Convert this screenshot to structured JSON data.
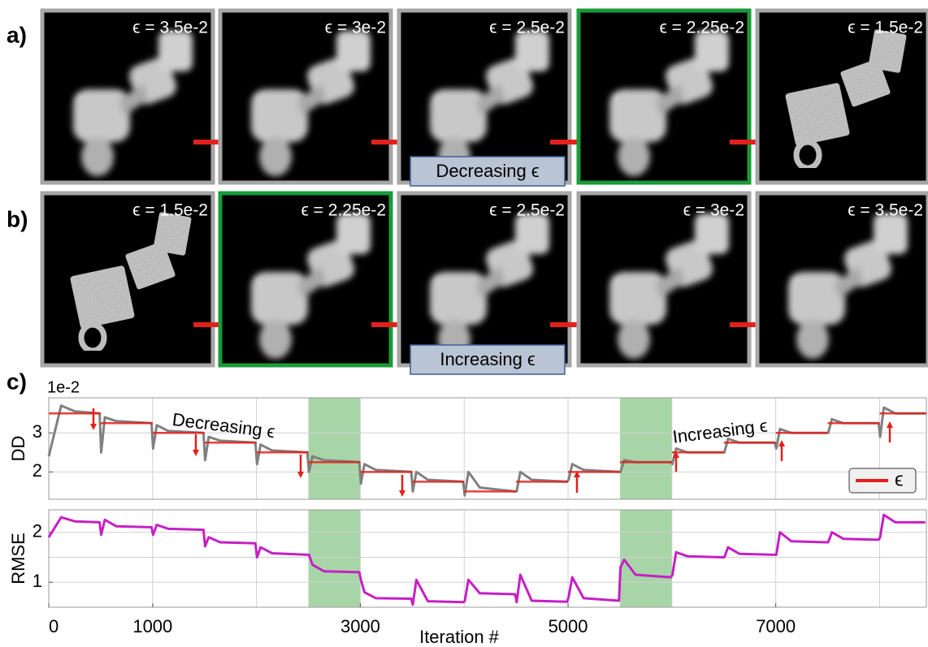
{
  "panels": {
    "labels": [
      "a)",
      "b)",
      "c)"
    ]
  },
  "row_a": {
    "frames": [
      "ϵ = 3.5e-2",
      "ϵ = 3e-2",
      "ϵ = 2.5e-2",
      "ϵ = 2.25e-2",
      "ϵ = 1.5e-2"
    ],
    "highlight": 3,
    "caption": "Decreasing ϵ"
  },
  "row_b": {
    "frames": [
      "ϵ = 1.5e-2",
      "ϵ = 2.25e-2",
      "ϵ = 2.5e-2",
      "ϵ = 3e-2",
      "ϵ = 3.5e-2"
    ],
    "highlight": 1,
    "caption": "Increasing ϵ"
  },
  "chart_data": [
    {
      "type": "line",
      "y_label": "DD",
      "y_multiplier": "1e-2",
      "xlim": [
        0,
        8450
      ],
      "ylim": [
        1.3,
        3.9
      ],
      "yticks": [
        2,
        3
      ],
      "xgrid": [
        1000,
        2000,
        3000,
        4000,
        5000,
        6000,
        7000,
        8000
      ],
      "grid": true,
      "highlights": [
        [
          2500,
          3000
        ],
        [
          5500,
          6000
        ]
      ],
      "highlight_color": "#a8d5a8",
      "annotations": [
        "Decreasing ϵ",
        "Increasing ϵ"
      ],
      "legend": "lower right",
      "series": [
        {
          "color": "#808080",
          "x": [
            0,
            120,
            250,
            490,
            505,
            540,
            650,
            990,
            1005,
            1040,
            1150,
            1490,
            1505,
            1540,
            1650,
            1990,
            2005,
            2040,
            2150,
            2490,
            2505,
            2540,
            2650,
            2990,
            3005,
            3040,
            3150,
            3490,
            3505,
            3540,
            3650,
            3990,
            4005,
            4040,
            4150,
            4490,
            4505,
            4540,
            4650,
            4990,
            5005,
            5040,
            5150,
            5490,
            5505,
            5540,
            5650,
            5990,
            6005,
            6040,
            6150,
            6490,
            6505,
            6540,
            6650,
            6990,
            7005,
            7040,
            7150,
            7490,
            7505,
            7540,
            7650,
            7990,
            8005,
            8040,
            8150,
            8440
          ],
          "values": [
            2.4,
            3.7,
            3.55,
            3.5,
            2.5,
            3.4,
            3.3,
            3.25,
            2.6,
            3.2,
            3.05,
            3,
            2.3,
            2.9,
            2.8,
            2.75,
            2.2,
            2.7,
            2.55,
            2.5,
            2.0,
            2.4,
            2.3,
            2.25,
            1.7,
            2.2,
            2.05,
            2,
            1.5,
            2.0,
            1.8,
            1.75,
            1.4,
            2.0,
            1.6,
            1.5,
            1.5,
            2.0,
            1.8,
            1.75,
            1.8,
            2.2,
            2.05,
            2,
            2.0,
            2.3,
            2.25,
            2.25,
            2.2,
            2.6,
            2.5,
            2.5,
            2.5,
            2.85,
            2.75,
            2.75,
            2.6,
            3.1,
            3.0,
            3,
            3.0,
            3.35,
            3.25,
            3.25,
            2.9,
            3.65,
            3.5,
            3.5
          ]
        },
        {
          "name": "ϵ",
          "color": "#e3201b",
          "style": "step",
          "x": [
            0,
            500,
            1000,
            1500,
            2000,
            2500,
            3000,
            3500,
            4000,
            4500,
            5000,
            5500,
            6000,
            6500,
            7000,
            7500,
            8000
          ],
          "values": [
            3.5,
            3.25,
            3,
            2.75,
            2.5,
            2.25,
            2,
            1.75,
            1.5,
            1.75,
            2,
            2.25,
            2.5,
            2.75,
            3,
            3.25,
            3.5
          ]
        }
      ]
    },
    {
      "type": "line",
      "y_label": "RMSE",
      "x_label": "Iteration #",
      "xlim": [
        0,
        8450
      ],
      "ylim": [
        0.5,
        2.45
      ],
      "yticks": [
        1,
        2
      ],
      "ygrid": [
        1,
        1.5,
        2
      ],
      "xticks": [
        0,
        1000,
        3000,
        5000,
        7000
      ],
      "xgrid": [
        1000,
        2000,
        3000,
        4000,
        5000,
        6000,
        7000,
        8000
      ],
      "grid": true,
      "highlights": [
        [
          2500,
          3000
        ],
        [
          5500,
          6000
        ]
      ],
      "highlight_color": "#a8d5a8",
      "series": [
        {
          "color": "#c520c5",
          "x": [
            0,
            120,
            250,
            490,
            505,
            540,
            650,
            990,
            1005,
            1040,
            1150,
            1490,
            1505,
            1540,
            1650,
            1990,
            2005,
            2040,
            2150,
            2490,
            2505,
            2540,
            2650,
            2990,
            3005,
            3040,
            3150,
            3490,
            3505,
            3540,
            3650,
            3990,
            4005,
            4040,
            4150,
            4490,
            4505,
            4540,
            4650,
            4990,
            5005,
            5040,
            5150,
            5490,
            5505,
            5540,
            5650,
            5990,
            6005,
            6040,
            6150,
            6490,
            6505,
            6540,
            6650,
            6990,
            7005,
            7040,
            7150,
            7490,
            7505,
            7540,
            7650,
            7990,
            8005,
            8040,
            8150,
            8440
          ],
          "values": [
            1.9,
            2.3,
            2.22,
            2.2,
            1.95,
            2.25,
            2.12,
            2.1,
            1.95,
            2.15,
            2.07,
            2.05,
            1.72,
            1.9,
            1.8,
            1.78,
            1.5,
            1.7,
            1.58,
            1.55,
            1.55,
            1.35,
            1.22,
            1.2,
            1.05,
            0.8,
            0.68,
            0.67,
            0.55,
            1.05,
            0.62,
            0.6,
            0.62,
            1.05,
            0.78,
            0.76,
            0.6,
            1.15,
            0.63,
            0.61,
            0.7,
            1.1,
            0.68,
            0.63,
            1.3,
            1.45,
            1.15,
            1.1,
            1.15,
            1.6,
            1.52,
            1.5,
            1.5,
            1.7,
            1.57,
            1.55,
            1.55,
            2.0,
            1.82,
            1.8,
            1.8,
            2.0,
            1.87,
            1.85,
            1.9,
            2.35,
            2.2,
            2.2
          ]
        }
      ]
    }
  ]
}
